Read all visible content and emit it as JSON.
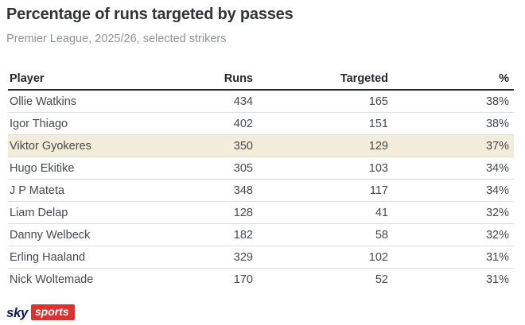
{
  "title": "Percentage of runs targeted by passes",
  "subtitle": "Premier League, 2025/26, selected strikers",
  "chart_data": {
    "type": "table",
    "title": "Percentage of runs targeted by passes",
    "subtitle": "Premier League, 2025/26, selected strikers",
    "columns": [
      "Player",
      "Runs",
      "Targeted",
      "%"
    ],
    "rows": [
      {
        "player": "Ollie Watkins",
        "runs": 434,
        "targeted": 165,
        "pct": "38%",
        "highlight": false
      },
      {
        "player": "Igor Thiago",
        "runs": 402,
        "targeted": 151,
        "pct": "38%",
        "highlight": false
      },
      {
        "player": "Viktor Gyokeres",
        "runs": 350,
        "targeted": 129,
        "pct": "37%",
        "highlight": true
      },
      {
        "player": "Hugo Ekitike",
        "runs": 305,
        "targeted": 103,
        "pct": "34%",
        "highlight": false
      },
      {
        "player": "J P Mateta",
        "runs": 348,
        "targeted": 117,
        "pct": "34%",
        "highlight": false
      },
      {
        "player": "Liam Delap",
        "runs": 128,
        "targeted": 41,
        "pct": "32%",
        "highlight": false
      },
      {
        "player": "Danny Welbeck",
        "runs": 182,
        "targeted": 58,
        "pct": "32%",
        "highlight": false
      },
      {
        "player": "Erling Haaland",
        "runs": 329,
        "targeted": 102,
        "pct": "31%",
        "highlight": false
      },
      {
        "player": "Nick Woltemade",
        "runs": 170,
        "targeted": 52,
        "pct": "31%",
        "highlight": false
      }
    ],
    "highlighted_player": "Viktor Gyokeres",
    "layout": {
      "grid": false,
      "header_rule": true,
      "row_dividers": true
    }
  },
  "logo": {
    "sky_text": "sky",
    "sports_text": "sports"
  },
  "colors": {
    "title": "#32343a",
    "subtitle": "#8f9297",
    "header_text": "#26282d",
    "header_rule": "#26282d",
    "row_text": "#46494e",
    "row_divider": "#dcdde0",
    "highlight_row": "#f3ecdb",
    "logo_navy": "#101a5a",
    "logo_red": "#de312e"
  }
}
